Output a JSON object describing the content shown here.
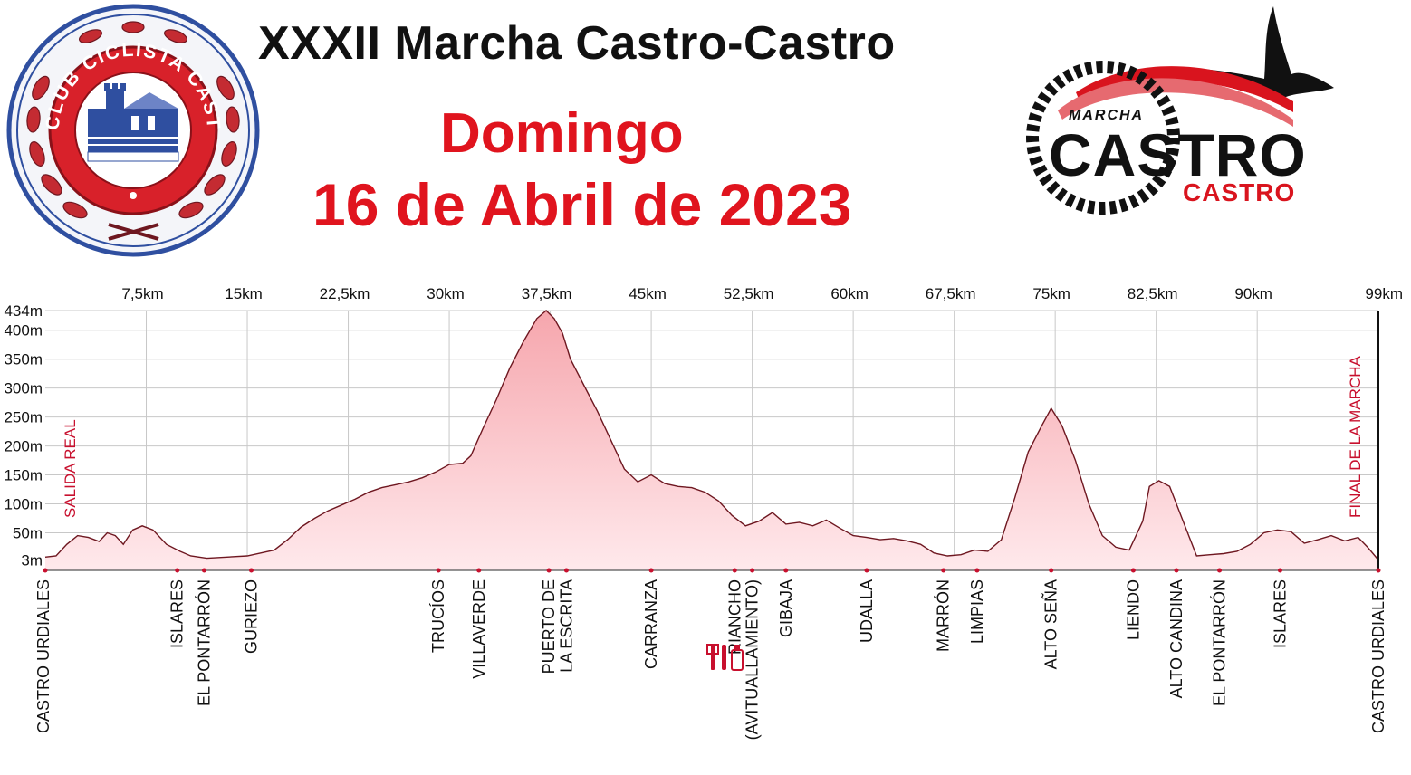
{
  "header": {
    "title": "XXXII Marcha Castro-Castro",
    "day": "Domingo",
    "date": "16 de Abril de 2023"
  },
  "logos": {
    "club": {
      "text": "CLUB CICLISTA CASTREÑO"
    },
    "marcha": {
      "line1": "MARCHA",
      "line2": "CASTRO",
      "line3": "CASTRO"
    }
  },
  "colors": {
    "accent": "#e0141e",
    "marker": "#c8102e",
    "profile_fill_top": "#f6a6ad",
    "profile_fill_bottom": "#ffe9ec",
    "profile_line": "#6e1720",
    "grid": "#c8c8c8",
    "club_blue": "#2f4fa0"
  },
  "chart_data": {
    "type": "area",
    "title": "",
    "xlabel": "",
    "ylabel": "",
    "xlim": [
      0,
      99
    ],
    "ylim": [
      -15,
      434
    ],
    "x_ticks": [
      {
        "value": 7.5,
        "label": "7,5km"
      },
      {
        "value": 15,
        "label": "15km"
      },
      {
        "value": 22.5,
        "label": "22,5km"
      },
      {
        "value": 30,
        "label": "30km"
      },
      {
        "value": 37.5,
        "label": "37,5km"
      },
      {
        "value": 45,
        "label": "45km"
      },
      {
        "value": 52.5,
        "label": "52,5km"
      },
      {
        "value": 60,
        "label": "60km"
      },
      {
        "value": 67.5,
        "label": "67,5km"
      },
      {
        "value": 75,
        "label": "75km"
      },
      {
        "value": 82.5,
        "label": "82,5km"
      },
      {
        "value": 90,
        "label": "90km"
      },
      {
        "value": 99,
        "label": "99km"
      }
    ],
    "y_ticks": [
      {
        "value": 3,
        "label": "3m"
      },
      {
        "value": 50,
        "label": "50m"
      },
      {
        "value": 100,
        "label": "100m"
      },
      {
        "value": 150,
        "label": "150m"
      },
      {
        "value": 200,
        "label": "200m"
      },
      {
        "value": 250,
        "label": "250m"
      },
      {
        "value": 300,
        "label": "300m"
      },
      {
        "value": 350,
        "label": "350m"
      },
      {
        "value": 400,
        "label": "400m"
      },
      {
        "value": 434,
        "label": "434m"
      }
    ],
    "grid": true,
    "series": [
      {
        "x": [
          0,
          0.8,
          1.6,
          2.4,
          3.2,
          4.0,
          4.6,
          5.2,
          5.8,
          6.5,
          7.2,
          8.0,
          9.0,
          10.0,
          10.8,
          12.0,
          13.5,
          15.0,
          16.0,
          17.0,
          18.0,
          19.0,
          20.0,
          21.0,
          22.0,
          23.0,
          24.0,
          25.0,
          26.0,
          27.0,
          28.0,
          29.0,
          30.0,
          31.0,
          31.6,
          32.5,
          33.5,
          34.5,
          35.5,
          36.5,
          37.2,
          37.8,
          38.4,
          39.0,
          40.0,
          41.0,
          42.0,
          43.0,
          44.0,
          45.0,
          46.0,
          47.0,
          48.0,
          49.0,
          50.0,
          51.0,
          52.0,
          53.0,
          54.0,
          55.0,
          56.0,
          57.0,
          58.0,
          59.0,
          60.0,
          61.0,
          62.0,
          63.0,
          64.0,
          65.0,
          66.0,
          67.0,
          68.0,
          69.0,
          70.0,
          71.0,
          72.0,
          73.0,
          74.0,
          74.7,
          75.5,
          76.5,
          77.5,
          78.5,
          79.5,
          80.5,
          81.5,
          82.0,
          82.7,
          83.5,
          84.5,
          85.5,
          86.5,
          87.5,
          88.5,
          89.5,
          90.5,
          91.5,
          92.5,
          93.5,
          94.5,
          95.5,
          96.5,
          97.5,
          98.2,
          99.0
        ],
        "y": [
          8,
          10,
          30,
          45,
          42,
          35,
          50,
          45,
          30,
          55,
          62,
          55,
          30,
          18,
          10,
          6,
          8,
          10,
          15,
          20,
          38,
          60,
          75,
          88,
          98,
          108,
          120,
          128,
          133,
          138,
          145,
          155,
          168,
          170,
          183,
          230,
          280,
          335,
          380,
          420,
          434,
          420,
          395,
          350,
          305,
          260,
          210,
          160,
          138,
          150,
          135,
          130,
          128,
          120,
          105,
          80,
          62,
          70,
          85,
          65,
          68,
          62,
          72,
          58,
          45,
          42,
          38,
          40,
          36,
          30,
          15,
          10,
          12,
          20,
          18,
          38,
          110,
          190,
          235,
          265,
          235,
          175,
          100,
          45,
          25,
          20,
          70,
          130,
          140,
          130,
          70,
          10,
          12,
          14,
          18,
          30,
          50,
          55,
          52,
          32,
          38,
          45,
          36,
          42,
          25,
          3
        ]
      }
    ],
    "locations": [
      {
        "km": 0,
        "label": "CASTRO URDIALES"
      },
      {
        "km": 9.8,
        "label": "ISLARES"
      },
      {
        "km": 11.8,
        "label": "EL PONTARRÓN"
      },
      {
        "km": 15.3,
        "label": "GURIEZO"
      },
      {
        "km": 29.2,
        "label": "TRUCÍOS"
      },
      {
        "km": 32.2,
        "label": "VILLAVERDE"
      },
      {
        "km": 37.4,
        "label": "PUERTO DE"
      },
      {
        "km": 38.7,
        "label": "LA ESCRITA"
      },
      {
        "km": 45.0,
        "label": "CARRANZA"
      },
      {
        "km": 51.2,
        "label": "RIANCHO"
      },
      {
        "km": 52.5,
        "label": "(AVITUALLAMIENTO)"
      },
      {
        "km": 55.0,
        "label": "GIBAJA"
      },
      {
        "km": 61.0,
        "label": "UDALLA"
      },
      {
        "km": 66.7,
        "label": "MARRÓN"
      },
      {
        "km": 69.2,
        "label": "LIMPIAS"
      },
      {
        "km": 74.7,
        "label": "ALTO SEÑA"
      },
      {
        "km": 80.8,
        "label": "LIENDO"
      },
      {
        "km": 84.0,
        "label": "ALTO CANDINA"
      },
      {
        "km": 87.2,
        "label": "EL PONTARRÓN"
      },
      {
        "km": 91.7,
        "label": "ISLARES"
      },
      {
        "km": 99.0,
        "label": "CASTRO URDIALES"
      }
    ],
    "annotations": [
      {
        "km": 1.0,
        "text": "SALIDA REAL"
      },
      {
        "km": 98.6,
        "text": "FINAL DE LA MARCHA"
      }
    ]
  }
}
